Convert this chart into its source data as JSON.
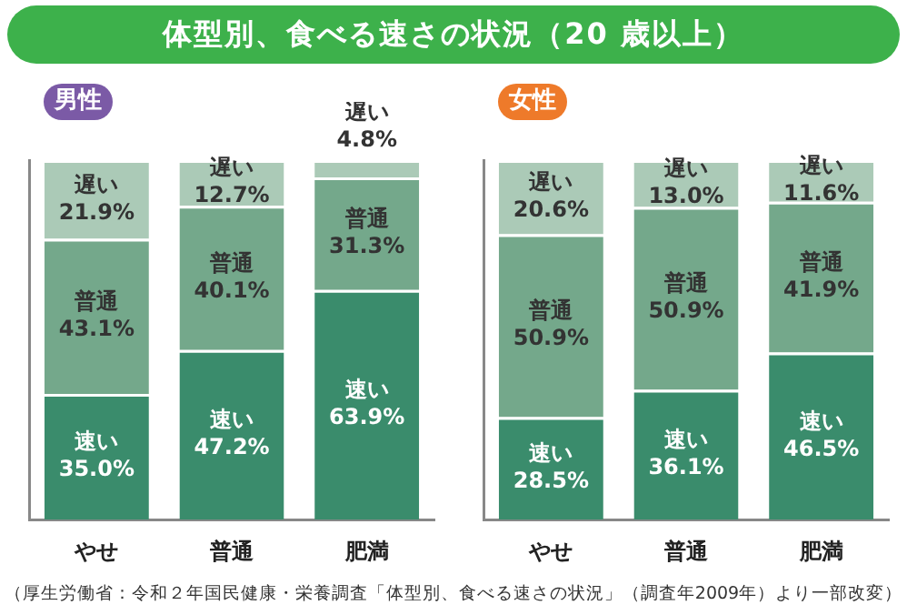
{
  "chart_data": [
    {
      "type": "bar",
      "title": "体型別、食べる速さの状況（20 歳以上）",
      "subtitle": "男性",
      "categories": [
        "やせ",
        "普通",
        "肥満"
      ],
      "stacked": true,
      "ylim": [
        0,
        100
      ],
      "tick_labels": "x",
      "series": [
        {
          "name": "速い",
          "color": "#3a8c6c",
          "values": [
            35.0,
            47.2,
            63.9
          ],
          "value_labels": [
            "35.0%",
            "47.2%",
            "63.9%"
          ]
        },
        {
          "name": "普通",
          "color": "#74a88b",
          "values": [
            43.1,
            40.1,
            31.3
          ],
          "value_labels": [
            "43.1%",
            "40.1%",
            "31.3%"
          ]
        },
        {
          "name": "遅い",
          "color": "#abcab7",
          "values": [
            21.9,
            12.7,
            4.8
          ],
          "value_labels": [
            "21.9%",
            "12.7%",
            "4.8%"
          ]
        }
      ]
    },
    {
      "type": "bar",
      "subtitle": "女性",
      "categories": [
        "やせ",
        "普通",
        "肥満"
      ],
      "stacked": true,
      "ylim": [
        0,
        100
      ],
      "tick_labels": "x",
      "annotations": [
        "（厚生労働省：令和２年国民健康・栄養調査「体型別、食べる速さの状況」（調査年2009年）より一部改変）"
      ],
      "series": [
        {
          "name": "速い",
          "color": "#3a8c6c",
          "values": [
            28.5,
            36.1,
            46.5
          ],
          "value_labels": [
            "28.5%",
            "36.1%",
            "46.5%"
          ]
        },
        {
          "name": "普通",
          "color": "#74a88b",
          "values": [
            50.9,
            50.9,
            41.9
          ],
          "value_labels": [
            "50.9%",
            "50.9%",
            "41.9%"
          ]
        },
        {
          "name": "遅い",
          "color": "#abcab7",
          "values": [
            20.6,
            13.0,
            11.6
          ],
          "value_labels": [
            "20.6%",
            "13.0%",
            "11.6%"
          ]
        }
      ]
    }
  ]
}
